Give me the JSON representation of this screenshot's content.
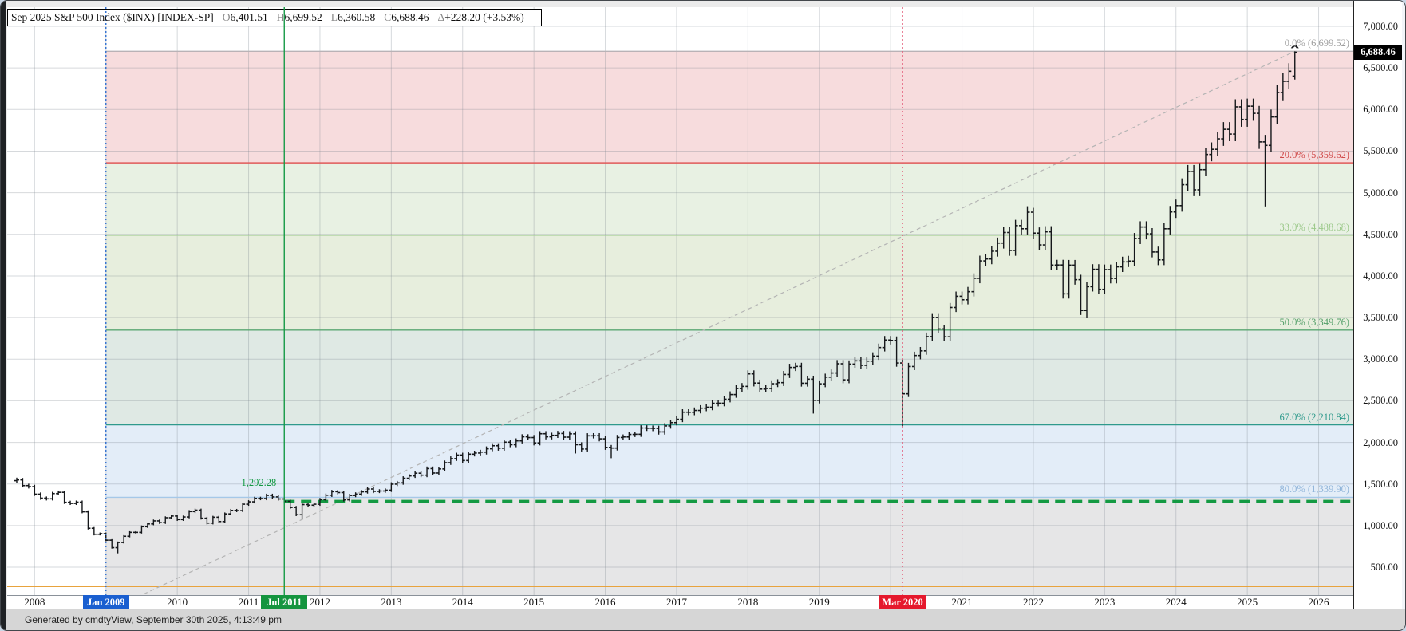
{
  "header": {
    "title": "Sep 2025  S&P 500 Index ($INX) [INDEX-SP]",
    "open_label": "O",
    "open_value": "6,401.51",
    "high_label": "H",
    "high_value": "6,699.52",
    "low_label": "L",
    "low_value": "6,360.58",
    "close_label": "C",
    "close_value": "6,688.46",
    "change_label": "Δ",
    "change_value": "+228.20 (+3.53%)"
  },
  "footer": {
    "text": "Generated by cmdtyView, September 30th 2025, 4:13:49 pm"
  },
  "price_axis": {
    "ticks": [
      {
        "label": "7,000.00",
        "price": 7000
      },
      {
        "label": "6,500.00",
        "price": 6500
      },
      {
        "label": "6,000.00",
        "price": 6000
      },
      {
        "label": "5,500.00",
        "price": 5500
      },
      {
        "label": "5,000.00",
        "price": 5000
      },
      {
        "label": "4,500.00",
        "price": 4500
      },
      {
        "label": "4,000.00",
        "price": 4000
      },
      {
        "label": "3,500.00",
        "price": 3500
      },
      {
        "label": "3,000.00",
        "price": 3000
      },
      {
        "label": "2,500.00",
        "price": 2500
      },
      {
        "label": "2,000.00",
        "price": 2000
      },
      {
        "label": "1,500.00",
        "price": 1500
      },
      {
        "label": "1,000.00",
        "price": 1000
      },
      {
        "label": "500.00",
        "price": 500
      }
    ],
    "badge": {
      "label": "6,688.46",
      "price": 6688.46
    }
  },
  "x_axis": {
    "years": [
      "2008",
      "2009",
      "2010",
      "2011",
      "2012",
      "2013",
      "2014",
      "2015",
      "2016",
      "2017",
      "2018",
      "2019",
      "2020",
      "2021",
      "2022",
      "2023",
      "2024",
      "2025",
      "2026"
    ],
    "events": [
      {
        "label": "Jan 2009",
        "month": "2009-01",
        "badge_color": "#1a5fd0",
        "line_color": "#2f6fd0",
        "line_style": "dotted"
      },
      {
        "label": "Jul 2011",
        "month": "2011-07",
        "badge_color": "#15953f",
        "line_color": "#169a46",
        "line_style": "solid"
      },
      {
        "label": "Mar 2020",
        "month": "2020-03",
        "badge_color": "#e5192d",
        "line_color": "#e25a77",
        "line_style": "dotted"
      }
    ]
  },
  "fib": {
    "anchor_month": "2009-01",
    "levels": [
      {
        "display": "0.0% (6,699.52)",
        "pct": 0.0,
        "price": 6699.52,
        "line_color": "#b9b2b6",
        "label_color": "#9e9e9e",
        "zone_below": "#f7dcdd"
      },
      {
        "display": "20.0% (5,359.62)",
        "pct": 20.0,
        "price": 5359.62,
        "line_color": "#e05a58",
        "label_color": "#d04a49",
        "zone_below": "#e8f1e3"
      },
      {
        "display": "33.0% (4,488.68)",
        "pct": 33.0,
        "price": 4488.68,
        "line_color": "#a8d198",
        "label_color": "#9cc98b",
        "zone_below": "#e7eedd"
      },
      {
        "display": "50.0% (3,349.76)",
        "pct": 50.0,
        "price": 3349.76,
        "line_color": "#5ba772",
        "label_color": "#55a06a",
        "zone_below": "#dfe9e4"
      },
      {
        "display": "67.0% (2,210.84)",
        "pct": 67.0,
        "price": 2210.84,
        "line_color": "#2f9a8c",
        "label_color": "#2f9a8c",
        "zone_below": "#e3edf8"
      },
      {
        "display": "80.0% (1,339.90)",
        "pct": 80.0,
        "price": 1339.9,
        "line_color": "#a5c8e8",
        "label_color": "#8fb4d9",
        "zone_below": "#e6e6e7"
      }
    ]
  },
  "annotations": {
    "close_level": {
      "label": "1,292.28",
      "price": 1292.28,
      "color": "#149a43",
      "start_month": "2011-07"
    },
    "trend_line": {
      "from_month": "2009-03",
      "from_price": 30,
      "to_month": "2025-09",
      "to_price": 6699.52,
      "color": "#b4b4b4"
    },
    "support_line": {
      "price": 270,
      "color": "#e8a33d"
    }
  },
  "chart_data": {
    "type": "bar",
    "subtype": "monthly-ohlc",
    "title": "Sep 2025 S&P 500 Index ($INX) [INDEX-SP]",
    "last_bar": {
      "open": 6401.51,
      "high": 6699.52,
      "low": 6360.58,
      "close": 6688.46,
      "change": "+228.20 (+3.53%)"
    },
    "start_month": "2007-10",
    "end_month": "2025-09",
    "ylim_visible": [
      165,
      7230
    ],
    "grid": true,
    "closes_by_year": {
      "2007": [
        1549,
        1481,
        1468
      ],
      "2008": [
        1378,
        1330,
        1322,
        1385,
        1400,
        1280,
        1267,
        1282,
        1166,
        968,
        896,
        903
      ],
      "2009": [
        825,
        735,
        797,
        872,
        919,
        919,
        987,
        1020,
        1057,
        1036,
        1095,
        1115
      ],
      "2010": [
        1073,
        1104,
        1169,
        1186,
        1089,
        1030,
        1101,
        1049,
        1141,
        1183,
        1180,
        1257
      ],
      "2011": [
        1286,
        1327,
        1325,
        1363,
        1345,
        1320,
        1292.28,
        1218,
        1131,
        1253,
        1246,
        1257
      ],
      "2012": [
        1312,
        1365,
        1408,
        1397,
        1310,
        1362,
        1379,
        1406,
        1440,
        1412,
        1416,
        1426
      ],
      "2013": [
        1498,
        1514,
        1569,
        1597,
        1630,
        1606,
        1685,
        1632,
        1681,
        1756,
        1805,
        1848
      ],
      "2014": [
        1782,
        1859,
        1872,
        1883,
        1923,
        1960,
        1930,
        2003,
        1972,
        2018,
        2067,
        2058
      ],
      "2015": [
        1994,
        2104,
        2067,
        2085,
        2107,
        2063,
        2103,
        1972,
        1920,
        2079,
        2080,
        2043
      ],
      "2016": [
        1940,
        1932,
        2059,
        2065,
        2096,
        2098,
        2173,
        2170,
        2168,
        2126,
        2198,
        2238
      ],
      "2017": [
        2278,
        2363,
        2362,
        2384,
        2411,
        2423,
        2470,
        2471,
        2519,
        2575,
        2647,
        2673
      ],
      "2018": [
        2823,
        2713,
        2640,
        2648,
        2705,
        2718,
        2816,
        2901,
        2913,
        2711,
        2760,
        2506
      ],
      "2019": [
        2704,
        2784,
        2834,
        2945,
        2752,
        2941,
        2980,
        2926,
        2976,
        3037,
        3140,
        3230
      ],
      "2020": [
        3225,
        2954,
        2584,
        2912,
        3044,
        3100,
        3271,
        3500,
        3363,
        3269,
        3621,
        3756
      ],
      "2021": [
        3714,
        3811,
        3972,
        4181,
        4204,
        4297,
        4395,
        4522,
        4307,
        4605,
        4567,
        4766
      ],
      "2022": [
        4515,
        4373,
        4530,
        4131,
        4132,
        3785,
        4130,
        3955,
        3585,
        3871,
        4080,
        3839
      ],
      "2023": [
        4076,
        3970,
        4109,
        4169,
        4179,
        4450,
        4588,
        4507,
        4288,
        4193,
        4567,
        4769
      ],
      "2024": [
        4845,
        5096,
        5254,
        5035,
        5277,
        5460,
        5522,
        5648,
        5762,
        5705,
        6032,
        5881
      ],
      "2025": [
        6040,
        5954,
        5611,
        5569,
        5911,
        6204,
        6339,
        6460,
        6688.46
      ]
    },
    "overrides": {
      "2007-10": {
        "h": 1576.09
      },
      "2009-03": {
        "l": 666.79
      },
      "2011-10": {
        "l": 1074.77
      },
      "2015-08": {
        "l": 1867.01
      },
      "2016-02": {
        "l": 1810.1
      },
      "2018-12": {
        "l": 2346.58
      },
      "2020-03": {
        "l": 2191.86
      },
      "2022-01": {
        "h": 4818.62
      },
      "2022-10": {
        "l": 3491.58
      },
      "2025-04": {
        "l": 4835.04
      },
      "2025-09": {
        "o": 6401.51,
        "h": 6699.52,
        "l": 6360.58,
        "c": 6688.46
      }
    }
  }
}
